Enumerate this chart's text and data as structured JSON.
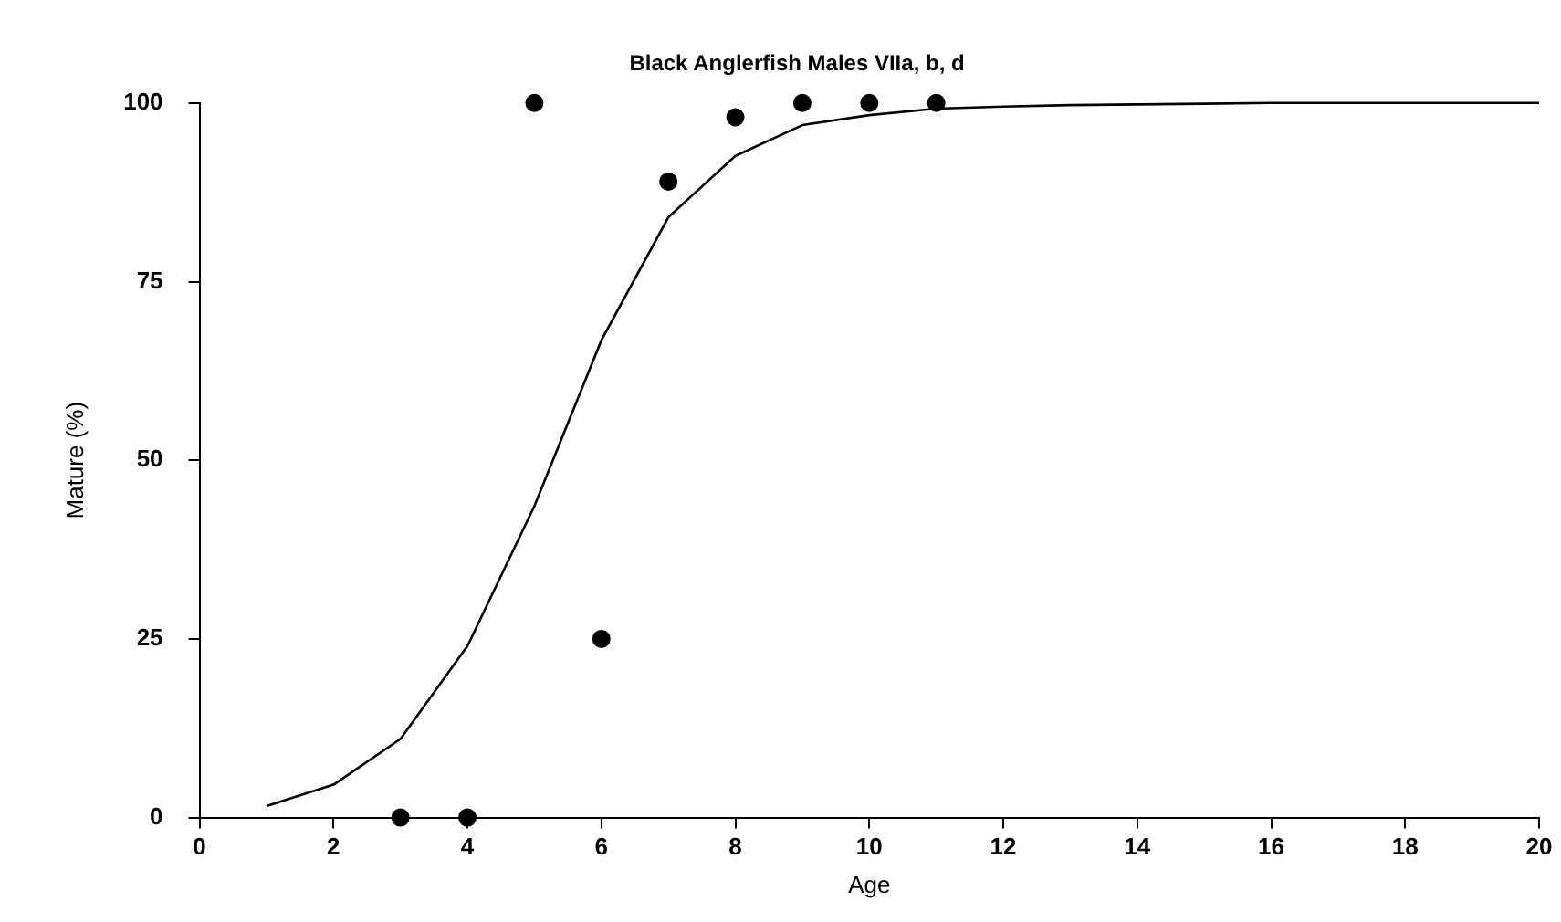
{
  "chart_data": {
    "type": "scatter",
    "title": "Black Anglerfish Males VIIa, b, d",
    "xlabel": "Age",
    "ylabel": "Mature (%)",
    "xlim": [
      0,
      20
    ],
    "xticks": [
      0,
      2,
      4,
      6,
      8,
      10,
      12,
      14,
      16,
      18,
      20
    ],
    "ylim": [
      0,
      100
    ],
    "yticks": [
      0,
      25,
      50,
      75,
      100
    ],
    "grid": false,
    "legend": false,
    "series": [
      {
        "type": "line",
        "color": "#000000",
        "marker": "none",
        "line_style": "solid",
        "x": [
          1,
          2,
          3,
          4,
          5,
          6,
          7,
          8,
          9,
          10,
          11,
          12,
          13,
          14,
          15,
          16,
          17,
          18,
          19,
          20
        ],
        "values": [
          1.6,
          4.6,
          11,
          24,
          43.6,
          66.8,
          84,
          92.6,
          96.9,
          98.3,
          99.2,
          99.5,
          99.7,
          99.8,
          99.9,
          100,
          100,
          100,
          100,
          100
        ]
      },
      {
        "type": "scatter",
        "color": "#000000",
        "marker": "circle",
        "x": [
          3,
          4,
          5,
          6,
          7,
          8,
          9,
          10,
          11
        ],
        "values": [
          0,
          0,
          100,
          25,
          89,
          98,
          100,
          100,
          100
        ]
      }
    ]
  }
}
